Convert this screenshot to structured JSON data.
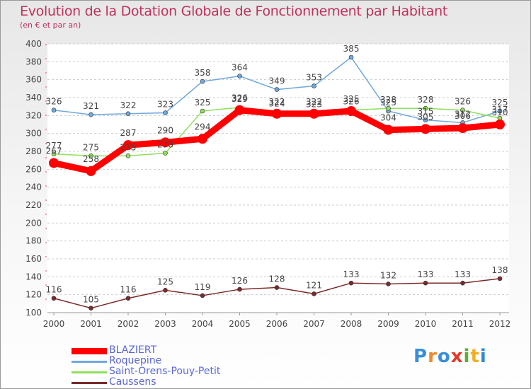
{
  "header": {
    "title": "Evolution de la Dotation Globale de Fonctionnement par Habitant",
    "subtitle": "(en € et par an)"
  },
  "chart_data": {
    "type": "line",
    "title": "Evolution de la Dotation Globale de Fonctionnement par Habitant",
    "subtitle": "(en € et par an)",
    "xlabel": "",
    "ylabel": "",
    "x": [
      "2000",
      "2001",
      "2002",
      "2003",
      "2004",
      "2005",
      "2006",
      "2007",
      "2008",
      "2009",
      "2010",
      "2011",
      "2012"
    ],
    "ylim": [
      100,
      400
    ],
    "yticks": [
      "100",
      "120",
      "140",
      "160",
      "180",
      "200",
      "220",
      "240",
      "260",
      "280",
      "300",
      "320",
      "340",
      "360",
      "380",
      "400"
    ],
    "grid": "horizontal dashed",
    "legend_position": "bottom-left",
    "series": [
      {
        "name": "BLAZIERT",
        "color": "#ff0000",
        "width": 9,
        "values": [
          267,
          258,
          287,
          290,
          294,
          326,
          322,
          322,
          325,
          304,
          305,
          306,
          310
        ]
      },
      {
        "name": "Roquepine",
        "color": "#6fa8dc",
        "width": 1.5,
        "values": [
          326,
          321,
          322,
          323,
          358,
          364,
          349,
          353,
          385,
          325,
          315,
          312,
          325
        ]
      },
      {
        "name": "Saint-Orens-Pouy-Petit",
        "color": "#8fe05c",
        "width": 1.5,
        "values": [
          277,
          275,
          275,
          278,
          325,
          329,
          324,
          323,
          326,
          328,
          328,
          326,
          317
        ]
      },
      {
        "name": "Caussens",
        "color": "#7a2a2a",
        "width": 1.5,
        "values": [
          116,
          105,
          116,
          125,
          119,
          126,
          128,
          121,
          133,
          132,
          133,
          133,
          138
        ]
      }
    ]
  },
  "legend": {
    "items": [
      {
        "label": "BLAZIERT",
        "color": "#ff0000"
      },
      {
        "label": "Roquepine",
        "color": "#6fa8dc"
      },
      {
        "label": "Saint-Orens-Pouy-Petit",
        "color": "#8fe05c"
      },
      {
        "label": "Caussens",
        "color": "#7a2a2a"
      }
    ]
  },
  "logo": {
    "text": "Proxiti",
    "colors": [
      "#3a8fd8",
      "#f08a2c",
      "#3a8fd8",
      "#e23a2a",
      "#5ab030",
      "#f0b020",
      "#2a8ad8"
    ]
  }
}
